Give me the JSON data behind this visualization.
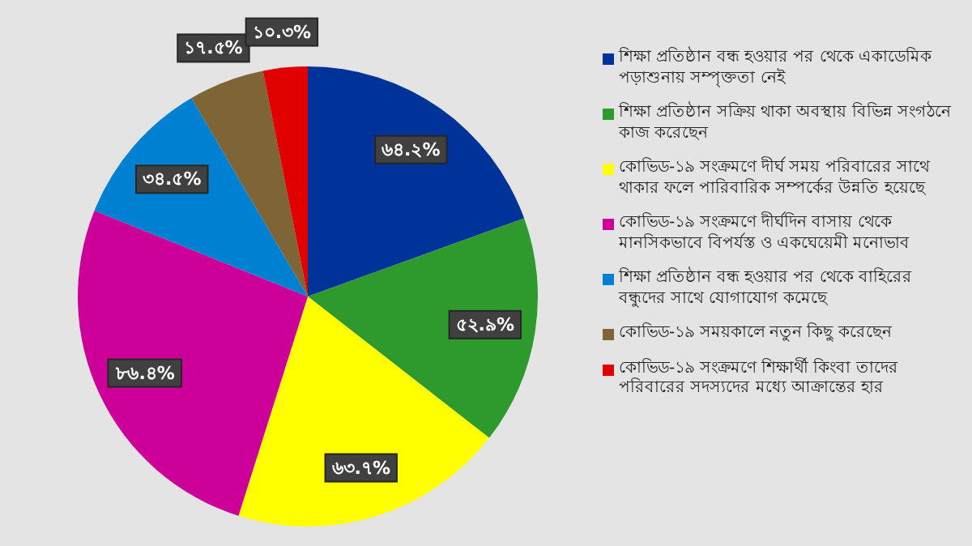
{
  "chart_data": {
    "type": "pie",
    "legend": "right",
    "categories": [
      "শিক্ষা প্রতিষ্ঠান বন্ধ হওয়ার পর থেকে একাডেমিক পড়াশুনায় সম্পৃক্ততা নেই",
      "শিক্ষা প্রতিষ্ঠান সক্রিয় থাকা অবস্থায় বিভিন্ন সংগঠনে কাজ করেছেন",
      "কোভিড-১৯ সংক্রমণে দীর্ঘ সময় পরিবারের সাথে থাকার ফলে পারিবারিক সম্পর্কের উন্নতি হয়েছে",
      "কোভিড-১৯ সংক্রমণে দীর্ঘদিন বাসায় থেকে মানসিকভাবে বিপর্যস্ত ও একঘেয়েমী মনোভাব",
      "শিক্ষা প্রতিষ্ঠান বন্ধ হওয়ার পর থেকে বাহিরের বন্ধুদের সাথে যোগাযোগ কমেছে",
      "কোভিড-১৯ সময়কালে নতুন কিছু করেছেন",
      "কোভিড-১৯ সংক্রমণে শিক্ষার্থী কিংবা তাদের পরিবারের সদস্যদের মধ্যে আক্রান্তের হার"
    ],
    "values": [
      64.2,
      52.9,
      63.7,
      86.4,
      34.5,
      17.5,
      10.3
    ],
    "value_labels": [
      "৬৪.২%",
      "৫২.৯%",
      "৬৩.৭%",
      "৮৬.৪%",
      "৩৪.৫%",
      "১৭.৫%",
      "১০.৩%"
    ],
    "colors": [
      "#003399",
      "#2e9a2e",
      "#ffff00",
      "#cc0099",
      "#0080d0",
      "#7f6535",
      "#e00000"
    ]
  }
}
